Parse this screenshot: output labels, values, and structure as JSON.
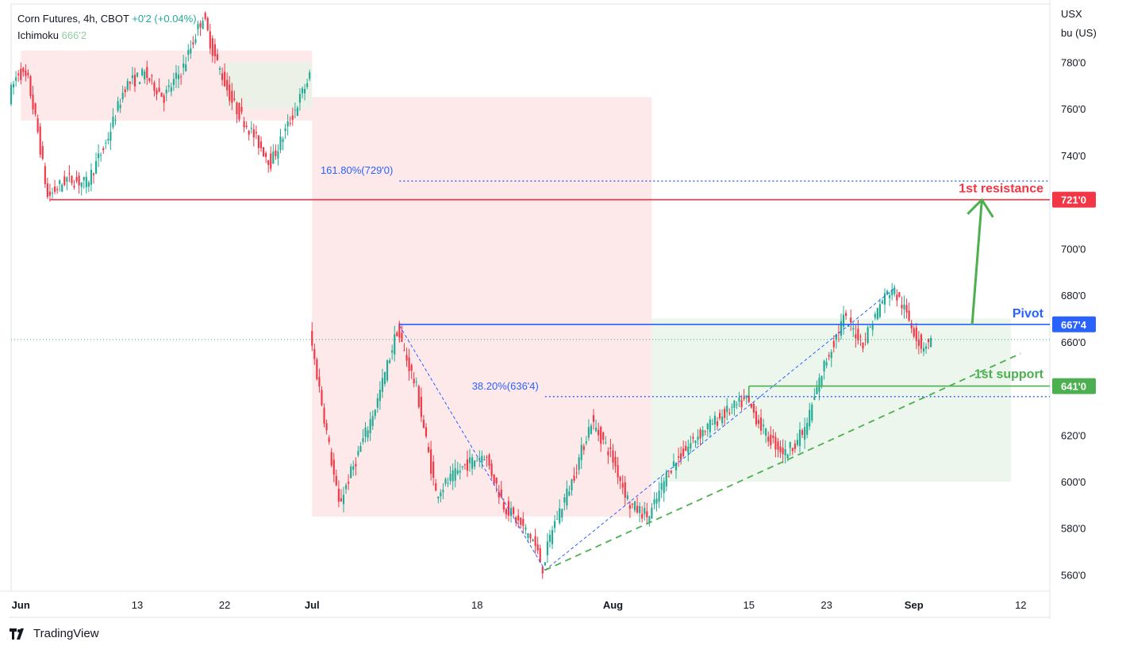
{
  "legend": {
    "symbol_line": "Corn Futures, 4h, CBOT",
    "change": "+0'2 (+0.04%)",
    "indicator_name": "Ichimoku",
    "indicator_value": "666'2"
  },
  "axis_unit": [
    "USX",
    "bu (US)"
  ],
  "branding": "TradingView",
  "colors": {
    "up": "#22ab94",
    "down": "#f23645",
    "pivot": "#2962ff",
    "resistance": "#f23645",
    "support": "#4caf50",
    "fib": "#2962ff",
    "cloud_bear": "#fce1e1",
    "cloud_bull": "#e5f3e6"
  },
  "chart_data": {
    "type": "candlestick",
    "title": "Corn Futures, 4h, CBOT",
    "ylim": [
      553,
      805
    ],
    "y_ticks": [
      "780'0",
      "760'0",
      "740'0",
      "720'0",
      "700'0",
      "680'0",
      "660'0",
      "640'0",
      "620'0",
      "600'0",
      "580'0",
      "560'0"
    ],
    "y_tick_values": [
      780,
      760,
      740,
      720,
      700,
      680,
      660,
      640,
      620,
      600,
      580,
      560
    ],
    "x_ticks": [
      "Jun",
      "13",
      "22",
      "Jul",
      "18",
      "Aug",
      "15",
      "23",
      "Sep",
      "12"
    ],
    "x_tick_dates": [
      "2022-06-01",
      "2022-06-13",
      "2022-06-22",
      "2022-07-01",
      "2022-07-18",
      "2022-08-01",
      "2022-08-15",
      "2022-08-23",
      "2022-09-01",
      "2022-09-12"
    ],
    "price_path": [
      {
        "date": "2022-05-31",
        "price": 765
      },
      {
        "date": "2022-06-01",
        "price": 776
      },
      {
        "date": "2022-06-02",
        "price": 772
      },
      {
        "date": "2022-06-03",
        "price": 750
      },
      {
        "date": "2022-06-04",
        "price": 722
      },
      {
        "date": "2022-06-06",
        "price": 730
      },
      {
        "date": "2022-06-08",
        "price": 728
      },
      {
        "date": "2022-06-10",
        "price": 745
      },
      {
        "date": "2022-06-12",
        "price": 770
      },
      {
        "date": "2022-06-14",
        "price": 775
      },
      {
        "date": "2022-06-16",
        "price": 765
      },
      {
        "date": "2022-06-18",
        "price": 778
      },
      {
        "date": "2022-06-20",
        "price": 800
      },
      {
        "date": "2022-06-21",
        "price": 785
      },
      {
        "date": "2022-06-23",
        "price": 763
      },
      {
        "date": "2022-06-25",
        "price": 750
      },
      {
        "date": "2022-06-27",
        "price": 737
      },
      {
        "date": "2022-06-29",
        "price": 755
      },
      {
        "date": "2022-07-01",
        "price": 774
      },
      {
        "date": "2022-07-01",
        "price": 664
      },
      {
        "date": "2022-07-02",
        "price": 640
      },
      {
        "date": "2022-07-04",
        "price": 590
      },
      {
        "date": "2022-07-06",
        "price": 612
      },
      {
        "date": "2022-07-08",
        "price": 635
      },
      {
        "date": "2022-07-10",
        "price": 665
      },
      {
        "date": "2022-07-12",
        "price": 640
      },
      {
        "date": "2022-07-14",
        "price": 595
      },
      {
        "date": "2022-07-17",
        "price": 607
      },
      {
        "date": "2022-07-19",
        "price": 612
      },
      {
        "date": "2022-07-21",
        "price": 590
      },
      {
        "date": "2022-07-24",
        "price": 575
      },
      {
        "date": "2022-07-25",
        "price": 563
      },
      {
        "date": "2022-07-26",
        "price": 580
      },
      {
        "date": "2022-07-28",
        "price": 600
      },
      {
        "date": "2022-07-30",
        "price": 626
      },
      {
        "date": "2022-08-01",
        "price": 612
      },
      {
        "date": "2022-08-03",
        "price": 590
      },
      {
        "date": "2022-08-05",
        "price": 585
      },
      {
        "date": "2022-08-07",
        "price": 605
      },
      {
        "date": "2022-08-10",
        "price": 620
      },
      {
        "date": "2022-08-13",
        "price": 630
      },
      {
        "date": "2022-08-15",
        "price": 635
      },
      {
        "date": "2022-08-17",
        "price": 620
      },
      {
        "date": "2022-08-19",
        "price": 612
      },
      {
        "date": "2022-08-21",
        "price": 622
      },
      {
        "date": "2022-08-23",
        "price": 650
      },
      {
        "date": "2022-08-25",
        "price": 670
      },
      {
        "date": "2022-08-27",
        "price": 660
      },
      {
        "date": "2022-08-29",
        "price": 678
      },
      {
        "date": "2022-08-30",
        "price": 683
      },
      {
        "date": "2022-08-31",
        "price": 676
      },
      {
        "date": "2022-09-02",
        "price": 658
      },
      {
        "date": "2022-09-03",
        "price": 661
      }
    ],
    "ichimoku_cloud": [
      {
        "from": "2022-06-01",
        "to": "2022-07-01",
        "direction": "bearish",
        "range": [
          755,
          785
        ]
      },
      {
        "from": "2022-06-22",
        "to": "2022-07-01",
        "direction": "bullish",
        "range": [
          760,
          780
        ]
      },
      {
        "from": "2022-07-01",
        "to": "2022-08-05",
        "direction": "bearish",
        "range": [
          585,
          765
        ]
      },
      {
        "from": "2022-08-05",
        "to": "2022-09-11",
        "direction": "bullish",
        "range": [
          600,
          670
        ]
      }
    ],
    "levels": [
      {
        "label": "1st resistance",
        "value": 721,
        "price_label": "721'0",
        "color": "#f23645"
      },
      {
        "label": "Pivot",
        "value": 667.5,
        "price_label": "667'4",
        "color": "#2962ff"
      },
      {
        "label": "1st support",
        "value": 641,
        "price_label": "641'0",
        "color": "#4caf50"
      }
    ],
    "fib_levels": [
      {
        "label": "161.80%(729'0)",
        "value": 729
      },
      {
        "label": "38.20%(636'4)",
        "value": 636.5
      }
    ],
    "current_price": 661,
    "annotations": [
      "1st resistance",
      "Pivot",
      "1st support"
    ]
  }
}
